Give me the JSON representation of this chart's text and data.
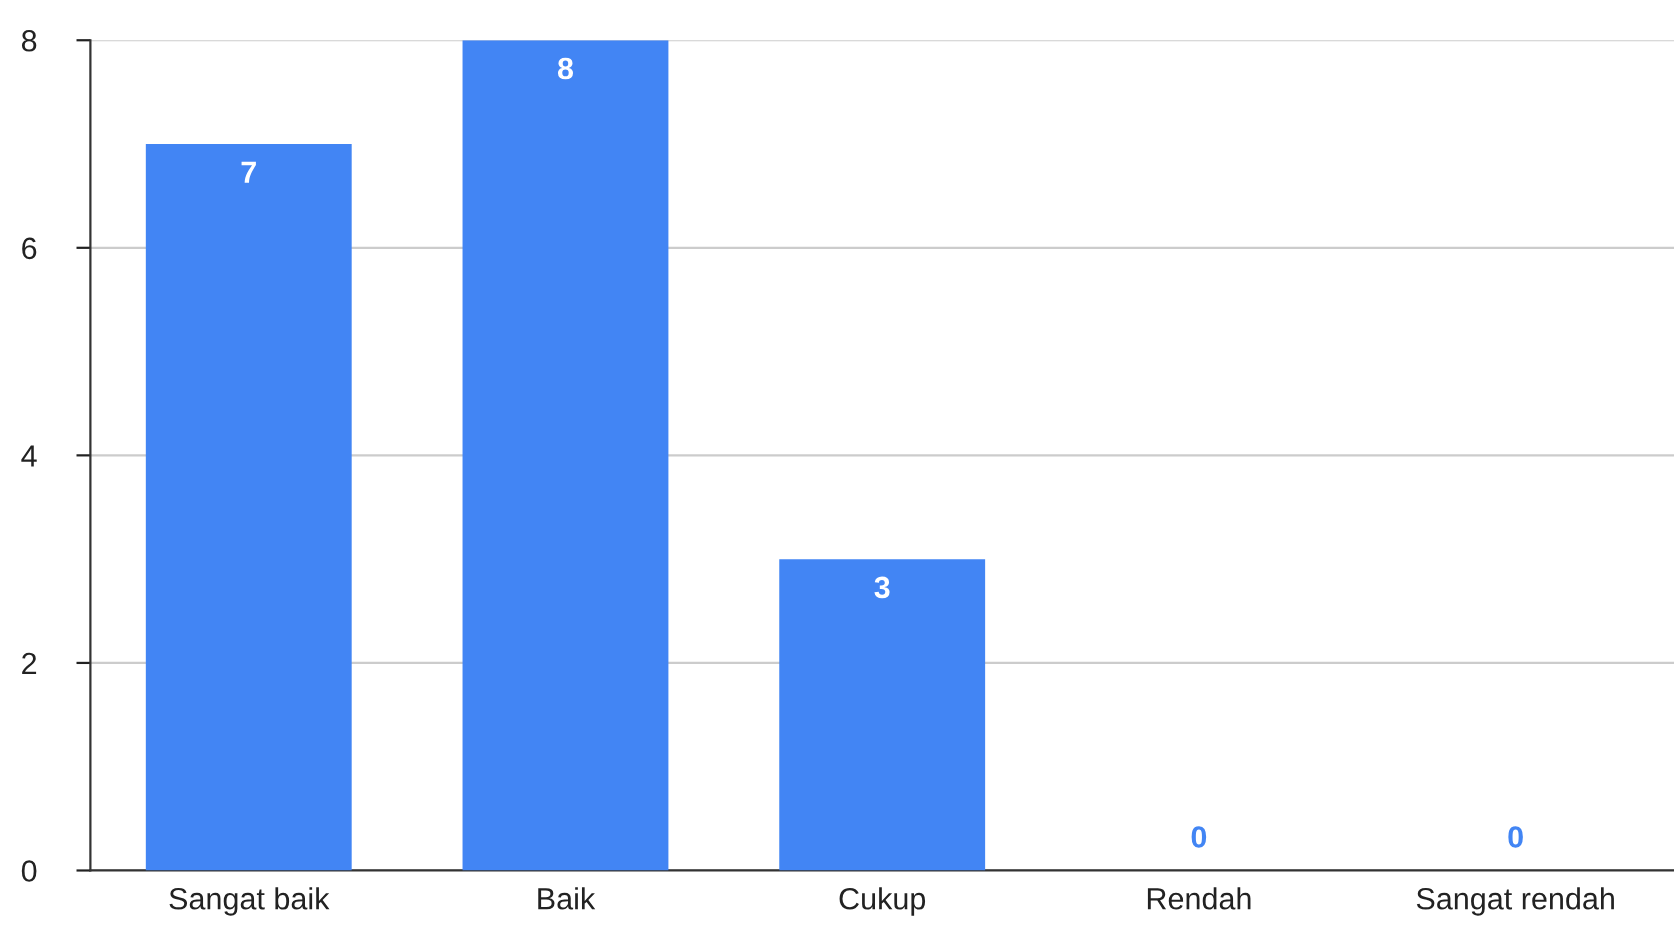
{
  "chart_data": {
    "type": "bar",
    "categories": [
      "Sangat baik",
      "Baik",
      "Cukup",
      "Rendah",
      "Sangat rendah"
    ],
    "values": [
      7,
      8,
      3,
      0,
      0
    ],
    "color": "#4285f4",
    "ylim": [
      0,
      8
    ],
    "yticks": [
      0,
      2,
      4,
      6,
      8
    ],
    "grid": "y",
    "data_labels": true,
    "legend": false
  }
}
